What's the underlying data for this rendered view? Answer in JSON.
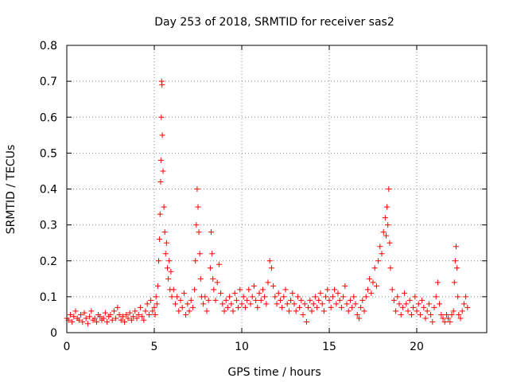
{
  "chart_data": {
    "type": "scatter",
    "title": "Day 253 of 2018, SRMTID for receiver sas2",
    "xlabel": "GPS time / hours",
    "ylabel": "SRMTID / TECUs",
    "xlim": [
      0,
      24
    ],
    "ylim": [
      0,
      0.8
    ],
    "xticks": [
      0,
      5,
      10,
      15,
      20
    ],
    "yticks": [
      0,
      0.1,
      0.2,
      0.3,
      0.4,
      0.5,
      0.6,
      0.7,
      0.8
    ],
    "xtick_labels": [
      "0",
      "5",
      "10",
      "15",
      "20"
    ],
    "ytick_labels": [
      "0",
      "0.1",
      "0.2",
      "0.3",
      "0.4",
      "0.5",
      "0.6",
      "0.7",
      "0.8"
    ],
    "grid": true,
    "marker": "plus",
    "color": "#ff0000",
    "series": [
      {
        "name": "SRMTID",
        "points": [
          [
            0.0,
            0.04
          ],
          [
            0.1,
            0.035
          ],
          [
            0.2,
            0.05
          ],
          [
            0.3,
            0.03
          ],
          [
            0.4,
            0.045
          ],
          [
            0.5,
            0.06
          ],
          [
            0.6,
            0.04
          ],
          [
            0.7,
            0.035
          ],
          [
            0.8,
            0.05
          ],
          [
            0.9,
            0.03
          ],
          [
            1.0,
            0.055
          ],
          [
            1.1,
            0.04
          ],
          [
            1.2,
            0.025
          ],
          [
            1.3,
            0.045
          ],
          [
            1.4,
            0.06
          ],
          [
            1.5,
            0.035
          ],
          [
            1.6,
            0.04
          ],
          [
            1.7,
            0.03
          ],
          [
            1.8,
            0.05
          ],
          [
            1.9,
            0.045
          ],
          [
            2.0,
            0.035
          ],
          [
            2.1,
            0.04
          ],
          [
            2.2,
            0.055
          ],
          [
            2.3,
            0.03
          ],
          [
            2.4,
            0.045
          ],
          [
            2.5,
            0.05
          ],
          [
            2.6,
            0.035
          ],
          [
            2.7,
            0.06
          ],
          [
            2.8,
            0.04
          ],
          [
            2.9,
            0.07
          ],
          [
            3.0,
            0.05
          ],
          [
            3.1,
            0.035
          ],
          [
            3.2,
            0.045
          ],
          [
            3.3,
            0.03
          ],
          [
            3.4,
            0.05
          ],
          [
            3.5,
            0.04
          ],
          [
            3.6,
            0.055
          ],
          [
            3.7,
            0.035
          ],
          [
            3.8,
            0.045
          ],
          [
            3.9,
            0.06
          ],
          [
            4.0,
            0.04
          ],
          [
            4.1,
            0.05
          ],
          [
            4.2,
            0.07
          ],
          [
            4.3,
            0.045
          ],
          [
            4.4,
            0.035
          ],
          [
            4.5,
            0.06
          ],
          [
            4.6,
            0.08
          ],
          [
            4.7,
            0.05
          ],
          [
            4.8,
            0.09
          ],
          [
            4.9,
            0.06
          ],
          [
            5.0,
            0.07
          ],
          [
            5.05,
            0.05
          ],
          [
            5.1,
            0.1
          ],
          [
            5.15,
            0.08
          ],
          [
            5.2,
            0.13
          ],
          [
            5.25,
            0.2
          ],
          [
            5.3,
            0.26
          ],
          [
            5.33,
            0.33
          ],
          [
            5.36,
            0.42
          ],
          [
            5.38,
            0.48
          ],
          [
            5.4,
            0.6
          ],
          [
            5.42,
            0.7
          ],
          [
            5.44,
            0.69
          ],
          [
            5.46,
            0.55
          ],
          [
            5.5,
            0.45
          ],
          [
            5.55,
            0.35
          ],
          [
            5.6,
            0.28
          ],
          [
            5.65,
            0.22
          ],
          [
            5.7,
            0.25
          ],
          [
            5.75,
            0.18
          ],
          [
            5.8,
            0.15
          ],
          [
            5.85,
            0.2
          ],
          [
            5.9,
            0.12
          ],
          [
            5.95,
            0.17
          ],
          [
            6.0,
            0.1
          ],
          [
            6.1,
            0.12
          ],
          [
            6.2,
            0.08
          ],
          [
            6.3,
            0.1
          ],
          [
            6.4,
            0.06
          ],
          [
            6.5,
            0.09
          ],
          [
            6.6,
            0.07
          ],
          [
            6.7,
            0.11
          ],
          [
            6.8,
            0.05
          ],
          [
            6.9,
            0.08
          ],
          [
            7.0,
            0.06
          ],
          [
            7.1,
            0.09
          ],
          [
            7.2,
            0.07
          ],
          [
            7.3,
            0.12
          ],
          [
            7.35,
            0.2
          ],
          [
            7.4,
            0.3
          ],
          [
            7.45,
            0.4
          ],
          [
            7.5,
            0.35
          ],
          [
            7.55,
            0.28
          ],
          [
            7.6,
            0.22
          ],
          [
            7.65,
            0.15
          ],
          [
            7.7,
            0.1
          ],
          [
            7.8,
            0.08
          ],
          [
            7.9,
            0.1
          ],
          [
            8.0,
            0.06
          ],
          [
            8.1,
            0.09
          ],
          [
            8.2,
            0.18
          ],
          [
            8.25,
            0.28
          ],
          [
            8.3,
            0.22
          ],
          [
            8.35,
            0.15
          ],
          [
            8.4,
            0.12
          ],
          [
            8.5,
            0.09
          ],
          [
            8.6,
            0.14
          ],
          [
            8.7,
            0.19
          ],
          [
            8.8,
            0.11
          ],
          [
            8.9,
            0.08
          ],
          [
            9.0,
            0.06
          ],
          [
            9.1,
            0.09
          ],
          [
            9.2,
            0.07
          ],
          [
            9.3,
            0.1
          ],
          [
            9.4,
            0.08
          ],
          [
            9.5,
            0.06
          ],
          [
            9.6,
            0.11
          ],
          [
            9.7,
            0.09
          ],
          [
            9.8,
            0.07
          ],
          [
            9.9,
            0.12
          ],
          [
            10.0,
            0.08
          ],
          [
            10.1,
            0.1
          ],
          [
            10.2,
            0.07
          ],
          [
            10.3,
            0.09
          ],
          [
            10.4,
            0.12
          ],
          [
            10.5,
            0.08
          ],
          [
            10.6,
            0.1
          ],
          [
            10.7,
            0.13
          ],
          [
            10.8,
            0.09
          ],
          [
            10.9,
            0.07
          ],
          [
            11.0,
            0.11
          ],
          [
            11.1,
            0.09
          ],
          [
            11.2,
            0.12
          ],
          [
            11.3,
            0.1
          ],
          [
            11.4,
            0.08
          ],
          [
            11.5,
            0.14
          ],
          [
            11.6,
            0.2
          ],
          [
            11.7,
            0.18
          ],
          [
            11.8,
            0.13
          ],
          [
            11.9,
            0.1
          ],
          [
            12.0,
            0.08
          ],
          [
            12.1,
            0.11
          ],
          [
            12.2,
            0.09
          ],
          [
            12.3,
            0.07
          ],
          [
            12.4,
            0.1
          ],
          [
            12.5,
            0.12
          ],
          [
            12.6,
            0.08
          ],
          [
            12.7,
            0.06
          ],
          [
            12.8,
            0.09
          ],
          [
            12.9,
            0.11
          ],
          [
            13.0,
            0.08
          ],
          [
            13.1,
            0.06
          ],
          [
            13.2,
            0.1
          ],
          [
            13.3,
            0.07
          ],
          [
            13.4,
            0.09
          ],
          [
            13.5,
            0.05
          ],
          [
            13.6,
            0.08
          ],
          [
            13.7,
            0.03
          ],
          [
            13.8,
            0.07
          ],
          [
            13.9,
            0.09
          ],
          [
            14.0,
            0.06
          ],
          [
            14.1,
            0.08
          ],
          [
            14.2,
            0.1
          ],
          [
            14.3,
            0.07
          ],
          [
            14.4,
            0.09
          ],
          [
            14.5,
            0.11
          ],
          [
            14.6,
            0.08
          ],
          [
            14.7,
            0.06
          ],
          [
            14.8,
            0.1
          ],
          [
            14.9,
            0.12
          ],
          [
            15.0,
            0.09
          ],
          [
            15.1,
            0.07
          ],
          [
            15.2,
            0.1
          ],
          [
            15.3,
            0.12
          ],
          [
            15.4,
            0.08
          ],
          [
            15.5,
            0.11
          ],
          [
            15.6,
            0.09
          ],
          [
            15.7,
            0.07
          ],
          [
            15.8,
            0.1
          ],
          [
            15.9,
            0.13
          ],
          [
            16.0,
            0.08
          ],
          [
            16.1,
            0.06
          ],
          [
            16.2,
            0.09
          ],
          [
            16.3,
            0.07
          ],
          [
            16.4,
            0.1
          ],
          [
            16.5,
            0.08
          ],
          [
            16.6,
            0.05
          ],
          [
            16.7,
            0.04
          ],
          [
            16.8,
            0.07
          ],
          [
            16.9,
            0.09
          ],
          [
            17.0,
            0.06
          ],
          [
            17.1,
            0.1
          ],
          [
            17.2,
            0.12
          ],
          [
            17.3,
            0.15
          ],
          [
            17.4,
            0.11
          ],
          [
            17.5,
            0.14
          ],
          [
            17.6,
            0.18
          ],
          [
            17.7,
            0.13
          ],
          [
            17.8,
            0.2
          ],
          [
            17.9,
            0.24
          ],
          [
            18.0,
            0.22
          ],
          [
            18.1,
            0.28
          ],
          [
            18.2,
            0.32
          ],
          [
            18.25,
            0.27
          ],
          [
            18.3,
            0.35
          ],
          [
            18.35,
            0.3
          ],
          [
            18.4,
            0.4
          ],
          [
            18.45,
            0.25
          ],
          [
            18.5,
            0.18
          ],
          [
            18.6,
            0.12
          ],
          [
            18.7,
            0.09
          ],
          [
            18.8,
            0.06
          ],
          [
            18.9,
            0.1
          ],
          [
            19.0,
            0.08
          ],
          [
            19.1,
            0.05
          ],
          [
            19.2,
            0.07
          ],
          [
            19.3,
            0.11
          ],
          [
            19.4,
            0.08
          ],
          [
            19.5,
            0.06
          ],
          [
            19.6,
            0.09
          ],
          [
            19.7,
            0.05
          ],
          [
            19.8,
            0.07
          ],
          [
            19.9,
            0.1
          ],
          [
            20.0,
            0.06
          ],
          [
            20.1,
            0.08
          ],
          [
            20.2,
            0.05
          ],
          [
            20.3,
            0.09
          ],
          [
            20.4,
            0.07
          ],
          [
            20.5,
            0.04
          ],
          [
            20.6,
            0.06
          ],
          [
            20.7,
            0.08
          ],
          [
            20.8,
            0.05
          ],
          [
            20.9,
            0.03
          ],
          [
            21.0,
            0.07
          ],
          [
            21.1,
            0.1
          ],
          [
            21.2,
            0.14
          ],
          [
            21.3,
            0.08
          ],
          [
            21.4,
            0.05
          ],
          [
            21.5,
            0.04
          ],
          [
            21.6,
            0.03
          ],
          [
            21.7,
            0.05
          ],
          [
            21.8,
            0.04
          ],
          [
            21.9,
            0.03
          ],
          [
            22.0,
            0.05
          ],
          [
            22.1,
            0.06
          ],
          [
            22.15,
            0.14
          ],
          [
            22.2,
            0.2
          ],
          [
            22.25,
            0.24
          ],
          [
            22.3,
            0.18
          ],
          [
            22.35,
            0.1
          ],
          [
            22.4,
            0.05
          ],
          [
            22.5,
            0.04
          ],
          [
            22.6,
            0.06
          ],
          [
            22.7,
            0.08
          ],
          [
            22.8,
            0.1
          ],
          [
            22.9,
            0.07
          ]
        ]
      }
    ]
  }
}
